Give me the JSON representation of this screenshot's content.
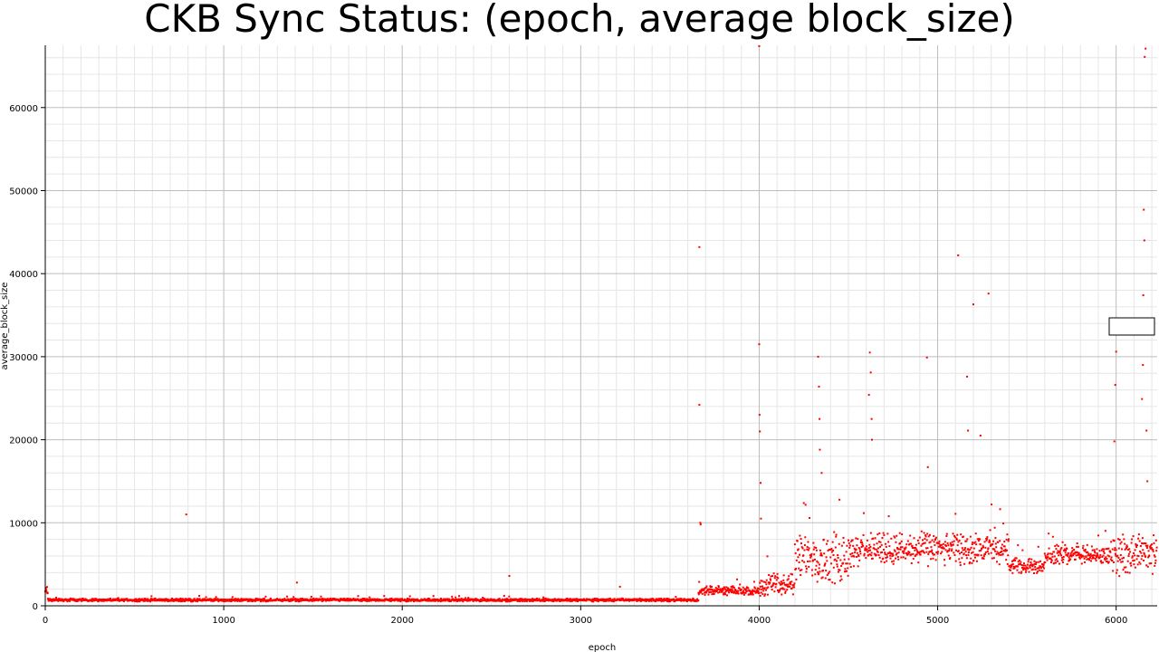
{
  "chart_data": {
    "type": "scatter",
    "title": "CKB Sync Status: (epoch, average block_size)",
    "xlabel": "epoch",
    "ylabel": "average_block_size",
    "xlim": [
      0,
      6230
    ],
    "ylim": [
      0,
      67500
    ],
    "x_ticks": [
      0,
      1000,
      2000,
      3000,
      4000,
      5000,
      6000
    ],
    "y_ticks": [
      0,
      10000,
      20000,
      30000,
      40000,
      50000,
      60000
    ],
    "x_tick_labels": [
      "0",
      "1000",
      "2000",
      "3000",
      "4000",
      "5000",
      "6000"
    ],
    "y_tick_labels": [
      "0",
      "10000",
      "20000",
      "30000",
      "40000",
      "50000",
      "60000"
    ],
    "grid": true,
    "marker_color": "#ff0000",
    "segments": [
      {
        "from": 0,
        "to": 15,
        "base": 1800,
        "spread": 700
      },
      {
        "from": 15,
        "to": 3660,
        "base": 700,
        "spread": 200
      },
      {
        "from": 3660,
        "to": 4000,
        "base": 1800,
        "spread": 600
      },
      {
        "from": 4000,
        "to": 4200,
        "base": 2600,
        "spread": 1600
      },
      {
        "from": 4200,
        "to": 4500,
        "base": 5800,
        "spread": 3500
      },
      {
        "from": 4500,
        "to": 5400,
        "base": 6800,
        "spread": 2200
      },
      {
        "from": 5400,
        "to": 5600,
        "base": 4800,
        "spread": 1000
      },
      {
        "from": 5600,
        "to": 5980,
        "base": 6100,
        "spread": 1400
      },
      {
        "from": 5980,
        "to": 6230,
        "base": 6300,
        "spread": 2800
      }
    ],
    "outliers": [
      [
        790,
        11000
      ],
      [
        1410,
        2800
      ],
      [
        2600,
        3600
      ],
      [
        3220,
        2300
      ],
      [
        3665,
        43200
      ],
      [
        3665,
        24200
      ],
      [
        3670,
        10000
      ],
      [
        3672,
        9800
      ],
      [
        4000,
        67400
      ],
      [
        4000,
        31500
      ],
      [
        4002,
        23000
      ],
      [
        4004,
        21000
      ],
      [
        4008,
        14800
      ],
      [
        4010,
        10500
      ],
      [
        4330,
        30000
      ],
      [
        4335,
        26400
      ],
      [
        4338,
        22500
      ],
      [
        4340,
        18800
      ],
      [
        4350,
        16000
      ],
      [
        4620,
        30500
      ],
      [
        4625,
        28100
      ],
      [
        4615,
        25400
      ],
      [
        4630,
        22500
      ],
      [
        4632,
        20000
      ],
      [
        4940,
        29900
      ],
      [
        4945,
        16700
      ],
      [
        5115,
        42200
      ],
      [
        5165,
        27600
      ],
      [
        5170,
        21100
      ],
      [
        5200,
        36300
      ],
      [
        5240,
        20500
      ],
      [
        5285,
        37600
      ],
      [
        5990,
        19800
      ],
      [
        5995,
        26600
      ],
      [
        6000,
        30600
      ],
      [
        6145,
        24900
      ],
      [
        6150,
        29000
      ],
      [
        6152,
        37400
      ],
      [
        6155,
        47700
      ],
      [
        6158,
        44000
      ],
      [
        6160,
        66100
      ],
      [
        6165,
        67100
      ],
      [
        6170,
        21100
      ],
      [
        6175,
        15000
      ]
    ]
  }
}
